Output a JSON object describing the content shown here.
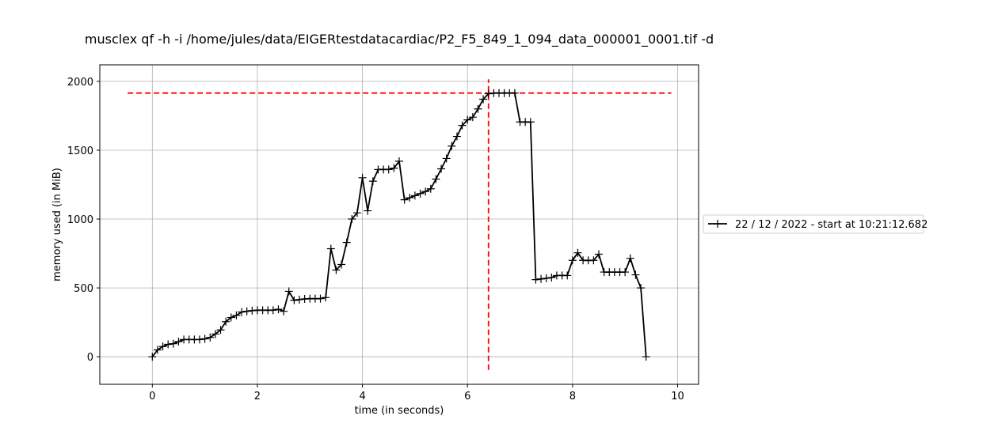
{
  "chart_data": {
    "type": "line",
    "title": "musclex qf -h -i /home/jules/data/EIGERtestdatacardiac/P2_F5_849_1_094_data_000001_0001.tif -d",
    "xlabel": "time (in seconds)",
    "ylabel": "memory used (in MiB)",
    "xlim": [
      -1,
      10.4
    ],
    "ylim": [
      -200,
      2120
    ],
    "xticks": [
      0,
      2,
      4,
      6,
      8,
      10
    ],
    "yticks": [
      0,
      500,
      1000,
      1500,
      2000
    ],
    "grid": true,
    "legend_position": "right",
    "series": [
      {
        "name": "22 / 12 / 2022 - start at 10:21:12.682",
        "color": "#000000",
        "marker": "+",
        "x": [
          0.0,
          0.1,
          0.2,
          0.3,
          0.4,
          0.5,
          0.6,
          0.7,
          0.8,
          0.9,
          1.0,
          1.1,
          1.2,
          1.3,
          1.4,
          1.5,
          1.6,
          1.7,
          1.8,
          1.9,
          2.0,
          2.1,
          2.2,
          2.3,
          2.4,
          2.5,
          2.6,
          2.7,
          2.8,
          2.9,
          3.0,
          3.1,
          3.2,
          3.3,
          3.4,
          3.5,
          3.6,
          3.7,
          3.8,
          3.9,
          4.0,
          4.1,
          4.2,
          4.3,
          4.4,
          4.5,
          4.6,
          4.7,
          4.8,
          4.9,
          5.0,
          5.1,
          5.2,
          5.3,
          5.4,
          5.5,
          5.6,
          5.7,
          5.8,
          5.9,
          6.0,
          6.1,
          6.2,
          6.3,
          6.4,
          6.5,
          6.6,
          6.7,
          6.8,
          6.9,
          7.0,
          7.1,
          7.2,
          7.3,
          7.4,
          7.5,
          7.6,
          7.7,
          7.8,
          7.9,
          8.0,
          8.1,
          8.2,
          8.3,
          8.4,
          8.5,
          8.6,
          8.7,
          8.8,
          8.9,
          9.0,
          9.1,
          9.2,
          9.3,
          9.4
        ],
        "y": [
          0,
          50,
          75,
          90,
          95,
          110,
          125,
          125,
          125,
          125,
          130,
          140,
          165,
          195,
          255,
          285,
          300,
          325,
          330,
          335,
          338,
          338,
          338,
          338,
          345,
          330,
          475,
          410,
          415,
          420,
          422,
          422,
          422,
          430,
          785,
          630,
          670,
          830,
          1000,
          1045,
          1300,
          1060,
          1275,
          1360,
          1360,
          1360,
          1370,
          1420,
          1140,
          1155,
          1170,
          1185,
          1200,
          1220,
          1290,
          1365,
          1440,
          1530,
          1600,
          1680,
          1720,
          1740,
          1800,
          1870,
          1910,
          1915,
          1915,
          1915,
          1915,
          1915,
          1705,
          1705,
          1705,
          560,
          565,
          570,
          575,
          590,
          590,
          590,
          700,
          755,
          700,
          700,
          700,
          745,
          615,
          615,
          615,
          615,
          615,
          715,
          595,
          500,
          0
        ]
      }
    ],
    "annotations": {
      "max_memory_hline": {
        "y": 1915,
        "xmin": -0.47,
        "xmax": 9.88,
        "color": "#ff0000",
        "style": "dashed"
      },
      "max_time_vline": {
        "x": 6.4,
        "ymin": -95,
        "ymax": 2015,
        "color": "#ff0000",
        "style": "dashed"
      }
    }
  }
}
